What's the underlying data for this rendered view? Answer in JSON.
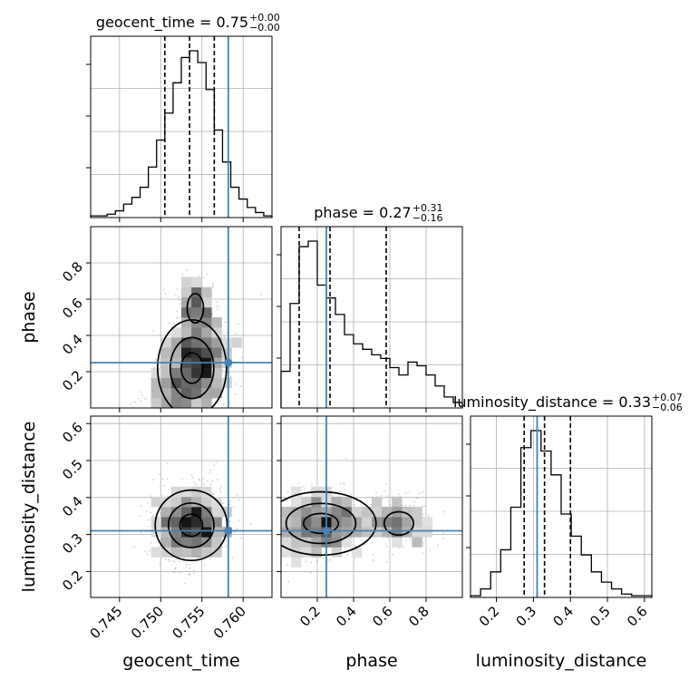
{
  "chart_data": {
    "type": "corner",
    "parameters": [
      {
        "key": "geocent_time",
        "label": "geocent_time",
        "range": [
          0.7415,
          0.7635
        ],
        "ticks": [
          0.745,
          0.75,
          0.755,
          0.76
        ],
        "tick_labels": [
          "0.745",
          "0.750",
          "0.755",
          "0.760"
        ],
        "truth": 0.7582,
        "quantiles": [
          0.7505,
          0.7535,
          0.7565
        ],
        "title": {
          "name": "geocent_time",
          "value": "0.75",
          "plus": "+0.00",
          "minus": "−0.00"
        },
        "hist": [
          1,
          1,
          2,
          4,
          8,
          12,
          18,
          30,
          46,
          62,
          80,
          95,
          99,
          92,
          76,
          52,
          33,
          18,
          11,
          6,
          3,
          1
        ]
      },
      {
        "key": "phase",
        "label": "phase",
        "range": [
          0.0,
          1.0
        ],
        "ticks": [
          0.2,
          0.4,
          0.6,
          0.8
        ],
        "tick_labels": [
          "0.2",
          "0.4",
          "0.6",
          "0.8"
        ],
        "truth": 0.25,
        "quantiles": [
          0.1,
          0.27,
          0.58
        ],
        "title": {
          "name": "phase",
          "value": "0.27",
          "plus": "+0.31",
          "minus": "−0.16"
        },
        "hist": [
          20,
          57,
          88,
          91,
          67,
          60,
          51,
          40,
          35,
          32,
          29,
          27,
          22,
          18,
          25,
          23,
          18,
          12,
          6,
          3
        ]
      },
      {
        "key": "luminosity_distance",
        "label": "luminosity_distance",
        "range": [
          0.13,
          0.62
        ],
        "ticks": [
          0.2,
          0.3,
          0.4,
          0.5,
          0.6
        ],
        "tick_labels": [
          "0.2",
          "0.3",
          "0.4",
          "0.5",
          "0.6"
        ],
        "truth": 0.31,
        "quantiles": [
          0.275,
          0.33,
          0.4
        ],
        "title": {
          "name": "luminosity_distance",
          "value": "0.33",
          "plus": "+0.07",
          "minus": "−0.06"
        },
        "hist": [
          1,
          5,
          15,
          28,
          53,
          88,
          98,
          86,
          72,
          49,
          36,
          25,
          15,
          9,
          5,
          2,
          1,
          1
        ]
      }
    ],
    "truth_color": "#4682b4",
    "hist_color": "#000000",
    "grid": true
  }
}
